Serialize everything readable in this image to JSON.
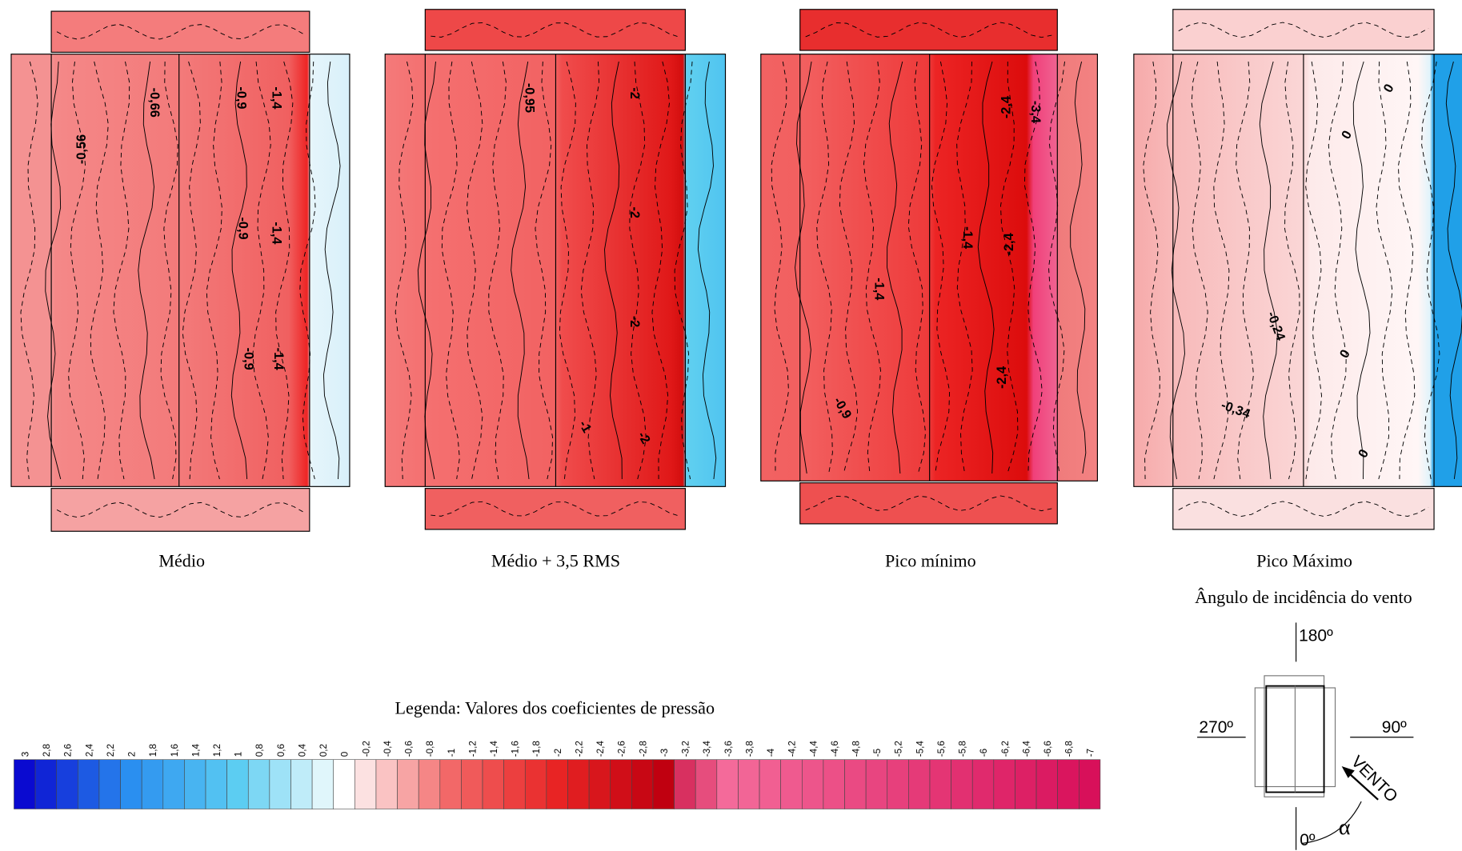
{
  "panels": [
    {
      "caption": "Médio",
      "contour_labels": [
        "-0,56",
        "-0,66",
        "-0,9",
        "-1,4",
        "-0,9",
        "-1,4",
        "-0,9",
        "-1,4"
      ]
    },
    {
      "caption": "Médio + 3,5 RMS",
      "contour_labels": [
        "-0,95",
        "-2",
        "-2",
        "-2",
        "-1",
        "-2"
      ]
    },
    {
      "caption": "Pico mínimo",
      "contour_labels": [
        "-2,4",
        "-3,4",
        "-1,4",
        "-2,4",
        "-1,4",
        "-0,9",
        "-2,4"
      ]
    },
    {
      "caption": "Pico Máximo",
      "contour_labels": [
        "0",
        "0",
        "-0,24",
        "0",
        "-0,34",
        "0"
      ]
    }
  ],
  "legend": {
    "title": "Legenda: Valores dos coeficientes de pressão",
    "ticks": [
      "3",
      "2,8",
      "2,6",
      "2,4",
      "2,2",
      "2",
      "1,8",
      "1,6",
      "1,4",
      "1,2",
      "1",
      "0,8",
      "0,6",
      "0,4",
      "0,2",
      "0",
      "-0,2",
      "-0,4",
      "-0,6",
      "-0,8",
      "-1",
      "-1,2",
      "-1,4",
      "-1,6",
      "-1,8",
      "-2",
      "-2,2",
      "-2,4",
      "-2,6",
      "-2,8",
      "-3",
      "-3,2",
      "-3,4",
      "-3,6",
      "-3,8",
      "-4",
      "-4,2",
      "-4,4",
      "-4,6",
      "-4,8",
      "-5",
      "-5,2",
      "-5,4",
      "-5,6",
      "-5,8",
      "-6",
      "-6,2",
      "-6,4",
      "-6,6",
      "-6,8",
      "-7"
    ]
  },
  "wind_diagram": {
    "title": "Ângulo de incidência do vento",
    "north": "180º",
    "west": "270º",
    "east": "90º",
    "south": "0º",
    "wind": "VENTO",
    "angle": "α"
  }
}
